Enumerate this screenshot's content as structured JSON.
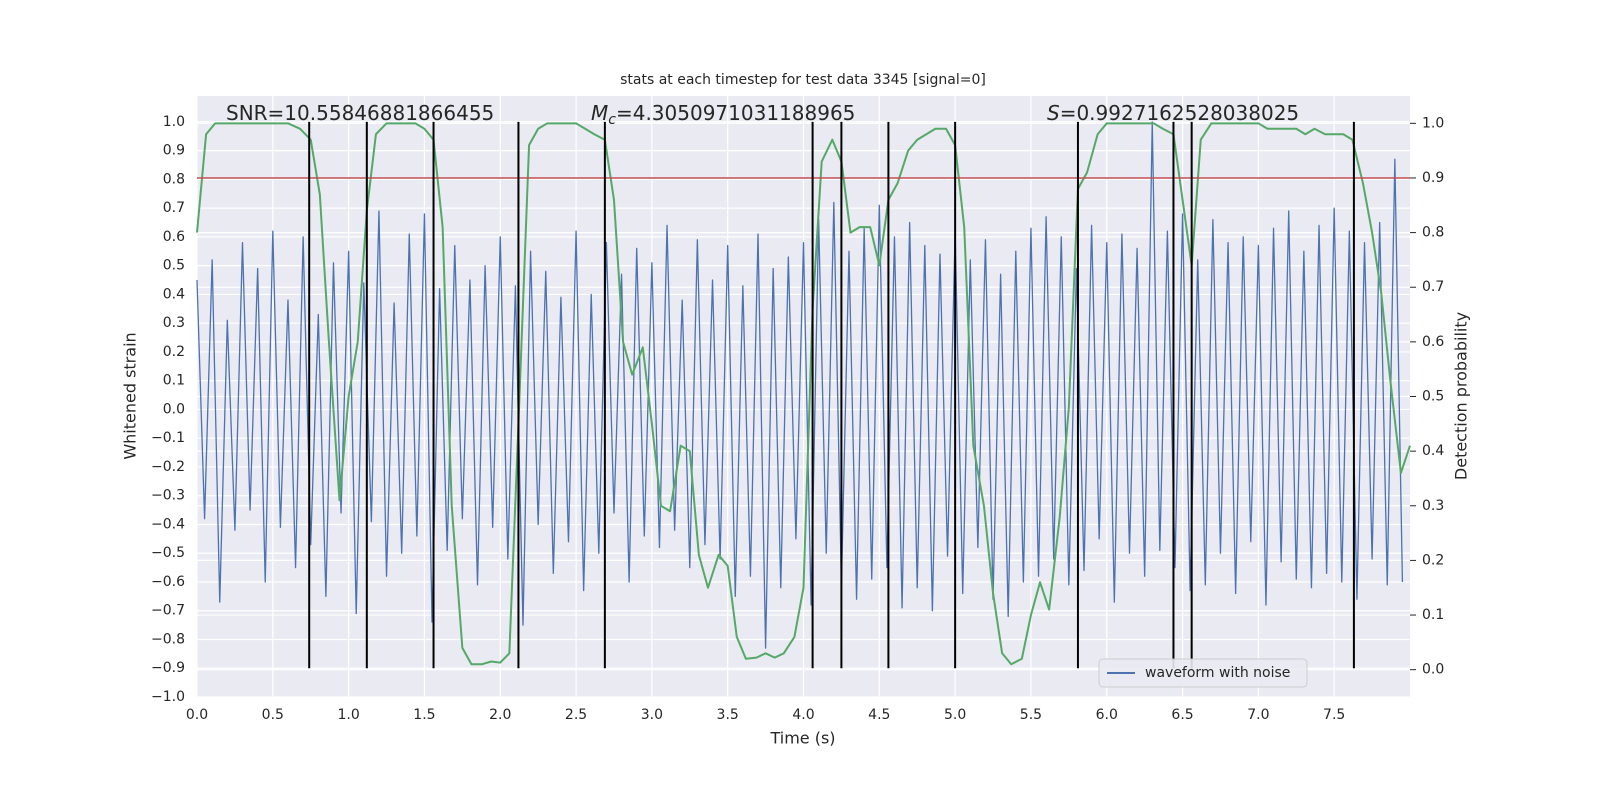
{
  "chart_data": {
    "type": "line",
    "title": "stats at each timestep for test data 3345 [signal=0]",
    "xlabel": "Time (s)",
    "ylabel": "Whitened strain",
    "y2label": "Detection probability",
    "xlim": [
      0,
      8
    ],
    "ylim": [
      -1.0,
      1.09
    ],
    "y2lim": [
      -0.05,
      1.05
    ],
    "xticks": [
      {
        "value": 0,
        "label": "0.0"
      },
      0.5,
      {
        "value": 1,
        "label": "1.0"
      },
      1.5,
      {
        "value": 2,
        "label": "2.0"
      },
      2.5,
      {
        "value": 3,
        "label": "3.0"
      },
      3.5,
      {
        "value": 4,
        "label": "4.0"
      },
      4.5,
      {
        "value": 5,
        "label": "5.0"
      },
      5.5,
      {
        "value": 6,
        "label": "6.0"
      },
      6.5,
      {
        "value": 7,
        "label": "7.0"
      },
      7.5
    ],
    "yticks": [
      {
        "value": -1,
        "label": "−1.0"
      },
      {
        "value": -0.9,
        "label": "−0.9"
      },
      {
        "value": -0.8,
        "label": "−0.8"
      },
      {
        "value": -0.7,
        "label": "−0.7"
      },
      {
        "value": -0.6,
        "label": "−0.6"
      },
      {
        "value": -0.5,
        "label": "−0.5"
      },
      {
        "value": -0.4,
        "label": "−0.4"
      },
      {
        "value": -0.3,
        "label": "−0.3"
      },
      {
        "value": -0.2,
        "label": "−0.2"
      },
      {
        "value": -0.1,
        "label": "−0.1"
      },
      {
        "value": 0,
        "label": "0.0"
      },
      0.1,
      0.2,
      0.3,
      0.4,
      0.5,
      0.6,
      0.7,
      0.8,
      0.9,
      {
        "value": 1,
        "label": "1.0"
      }
    ],
    "y2ticks": [
      {
        "value": 0,
        "label": "0.0"
      },
      0.1,
      0.2,
      0.3,
      0.4,
      0.5,
      0.6,
      0.7,
      0.8,
      0.9,
      {
        "value": 1,
        "label": "1.0"
      }
    ],
    "grid": true,
    "legend": "lower right",
    "annotations": [
      {
        "text": "SNR=10.55846881866455"
      },
      {
        "symbol": "M",
        "subscript": "c",
        "text": "=4.3050971031188965"
      },
      {
        "symbol": "S",
        "text": "=0.9927162528038025"
      }
    ],
    "threshold": {
      "value": 0.9,
      "axis": "y2",
      "color": "#c44e52"
    },
    "vlines": {
      "x": [
        0.74,
        1.12,
        1.56,
        2.12,
        2.69,
        4.06,
        4.25,
        4.56,
        5.0,
        5.81,
        6.44,
        6.56,
        7.63
      ],
      "ymin": -0.9,
      "ymax": 1.0,
      "color": "#000000"
    },
    "series": [
      {
        "name": "waveform with noise",
        "color": "#4c72b0",
        "x": [
          0,
          0.05,
          0.1,
          0.15,
          0.2,
          0.25,
          0.3,
          0.35,
          0.4,
          0.45,
          0.5,
          0.55,
          0.6,
          0.65,
          0.7,
          0.75,
          0.8,
          0.85,
          0.9,
          0.95,
          1,
          1.05,
          1.1,
          1.15,
          1.2,
          1.25,
          1.3,
          1.35,
          1.4,
          1.45,
          1.5,
          1.55,
          1.6,
          1.65,
          1.7,
          1.75,
          1.8,
          1.85,
          1.9,
          1.95,
          2,
          2.05,
          2.1,
          2.15,
          2.2,
          2.25,
          2.3,
          2.35,
          2.4,
          2.45,
          2.5,
          2.55,
          2.6,
          2.65,
          2.7,
          2.75,
          2.8,
          2.85,
          2.9,
          2.95,
          3,
          3.05,
          3.1,
          3.15,
          3.2,
          3.25,
          3.3,
          3.35,
          3.4,
          3.45,
          3.5,
          3.55,
          3.6,
          3.65,
          3.7,
          3.75,
          3.8,
          3.85,
          3.9,
          3.95,
          4,
          4.05,
          4.1,
          4.15,
          4.2,
          4.25,
          4.3,
          4.35,
          4.4,
          4.45,
          4.5,
          4.55,
          4.6,
          4.65,
          4.7,
          4.75,
          4.8,
          4.85,
          4.9,
          4.95,
          5,
          5.05,
          5.1,
          5.15,
          5.2,
          5.25,
          5.3,
          5.35,
          5.4,
          5.45,
          5.5,
          5.55,
          5.6,
          5.65,
          5.7,
          5.75,
          5.8,
          5.85,
          5.9,
          5.95,
          6,
          6.05,
          6.1,
          6.15,
          6.2,
          6.25,
          6.3,
          6.35,
          6.4,
          6.45,
          6.5,
          6.55,
          6.6,
          6.65,
          6.7,
          6.75,
          6.8,
          6.85,
          6.9,
          6.95,
          7,
          7.05,
          7.1,
          7.15,
          7.2,
          7.25,
          7.3,
          7.35,
          7.4,
          7.45,
          7.5,
          7.55,
          7.6,
          7.65,
          7.7,
          7.75,
          7.8,
          7.85,
          7.9,
          7.95
        ],
        "values": [
          0.45,
          -0.38,
          0.52,
          -0.67,
          0.31,
          -0.42,
          0.58,
          -0.35,
          0.49,
          -0.6,
          0.62,
          -0.41,
          0.38,
          -0.55,
          0.6,
          -0.47,
          0.33,
          -0.65,
          0.51,
          -0.36,
          0.55,
          -0.71,
          0.44,
          -0.39,
          0.69,
          -0.58,
          0.37,
          -0.5,
          0.61,
          -0.44,
          0.68,
          -0.74,
          0.42,
          -0.49,
          0.57,
          -0.38,
          0.45,
          -0.61,
          0.5,
          -0.41,
          0.6,
          -0.52,
          0.43,
          -0.75,
          0.55,
          -0.4,
          0.48,
          -0.57,
          0.39,
          -0.46,
          0.62,
          -0.63,
          0.4,
          -0.5,
          0.58,
          -0.36,
          0.47,
          -0.6,
          0.56,
          -0.44,
          0.51,
          -0.48,
          0.64,
          -0.42,
          0.38,
          -0.55,
          0.59,
          -0.47,
          0.45,
          -0.52,
          0.57,
          -0.65,
          0.43,
          -0.58,
          0.61,
          -0.83,
          0.49,
          -0.62,
          0.53,
          -0.45,
          0.58,
          -0.68,
          0.66,
          -0.5,
          0.72,
          -0.61,
          0.55,
          -0.66,
          0.63,
          -0.59,
          0.71,
          -0.55,
          0.6,
          -0.69,
          0.65,
          -0.62,
          0.57,
          -0.7,
          0.54,
          -0.51,
          0.62,
          -0.64,
          0.52,
          -0.48,
          0.59,
          -0.66,
          0.47,
          -0.72,
          0.55,
          -0.6,
          0.63,
          -0.58,
          0.67,
          -0.52,
          0.6,
          -0.61,
          0.49,
          -0.56,
          0.64,
          -0.45,
          0.58,
          -0.67,
          0.61,
          -0.5,
          0.56,
          -0.58,
          1.0,
          -0.49,
          0.62,
          -0.55,
          0.68,
          -0.63,
          0.52,
          -0.61,
          0.66,
          -0.5,
          0.58,
          -0.64,
          0.6,
          -0.46,
          0.57,
          -0.68,
          0.63,
          -0.53,
          0.69,
          -0.59,
          0.55,
          -0.62,
          0.64,
          -0.57,
          0.7,
          -0.6,
          0.62,
          -0.66,
          0.58,
          -0.52,
          0.65,
          -0.61,
          0.87,
          -0.6
        ]
      },
      {
        "color": "#55a868",
        "axis": "y2",
        "x": [
          0,
          0.06,
          0.12,
          0.2,
          0.3,
          0.4,
          0.5,
          0.6,
          0.68,
          0.75,
          0.81,
          0.87,
          0.94,
          1.0,
          1.06,
          1.12,
          1.18,
          1.25,
          1.31,
          1.37,
          1.44,
          1.5,
          1.56,
          1.62,
          1.68,
          1.75,
          1.81,
          1.88,
          1.94,
          2.0,
          2.06,
          2.12,
          2.19,
          2.25,
          2.31,
          2.38,
          2.44,
          2.5,
          2.56,
          2.62,
          2.69,
          2.75,
          2.81,
          2.87,
          2.94,
          3.0,
          3.06,
          3.12,
          3.19,
          3.25,
          3.31,
          3.37,
          3.44,
          3.5,
          3.56,
          3.62,
          3.69,
          3.75,
          3.81,
          3.87,
          3.94,
          4.0,
          4.06,
          4.12,
          4.19,
          4.25,
          4.31,
          4.37,
          4.44,
          4.5,
          4.56,
          4.62,
          4.69,
          4.75,
          4.81,
          4.87,
          4.94,
          5.0,
          5.06,
          5.12,
          5.19,
          5.25,
          5.31,
          5.37,
          5.44,
          5.5,
          5.56,
          5.62,
          5.69,
          5.75,
          5.81,
          5.87,
          5.94,
          6.0,
          6.06,
          6.12,
          6.19,
          6.25,
          6.31,
          6.37,
          6.44,
          6.5,
          6.56,
          6.62,
          6.69,
          6.75,
          6.81,
          6.87,
          6.94,
          7.0,
          7.06,
          7.12,
          7.19,
          7.25,
          7.31,
          7.37,
          7.44,
          7.5,
          7.56,
          7.62,
          7.69,
          7.75,
          7.81,
          7.87,
          7.94,
          8.0
        ],
        "values": [
          0.8,
          0.98,
          1.0,
          1.0,
          1.0,
          1.0,
          1.0,
          1.0,
          0.99,
          0.97,
          0.87,
          0.6,
          0.31,
          0.5,
          0.6,
          0.84,
          0.98,
          1.0,
          1.0,
          1.0,
          1.0,
          0.99,
          0.97,
          0.81,
          0.3,
          0.04,
          0.01,
          0.01,
          0.015,
          0.013,
          0.03,
          0.45,
          0.96,
          0.99,
          1.0,
          1.0,
          1.0,
          1.0,
          0.99,
          0.98,
          0.97,
          0.86,
          0.6,
          0.54,
          0.59,
          0.45,
          0.3,
          0.29,
          0.41,
          0.4,
          0.21,
          0.15,
          0.21,
          0.19,
          0.06,
          0.02,
          0.022,
          0.03,
          0.022,
          0.03,
          0.06,
          0.15,
          0.66,
          0.93,
          0.97,
          0.93,
          0.8,
          0.81,
          0.81,
          0.74,
          0.86,
          0.89,
          0.95,
          0.97,
          0.98,
          0.99,
          0.99,
          0.96,
          0.81,
          0.41,
          0.3,
          0.14,
          0.03,
          0.01,
          0.02,
          0.1,
          0.16,
          0.11,
          0.28,
          0.48,
          0.88,
          0.91,
          0.98,
          1.0,
          1.0,
          1.0,
          1.0,
          1.0,
          1.0,
          0.99,
          0.98,
          0.86,
          0.74,
          0.97,
          1.0,
          1.0,
          1.0,
          1.0,
          1.0,
          1.0,
          0.99,
          0.99,
          0.99,
          0.99,
          0.98,
          0.99,
          0.98,
          0.98,
          0.98,
          0.97,
          0.89,
          0.8,
          0.69,
          0.53,
          0.36,
          0.41
        ]
      }
    ]
  }
}
